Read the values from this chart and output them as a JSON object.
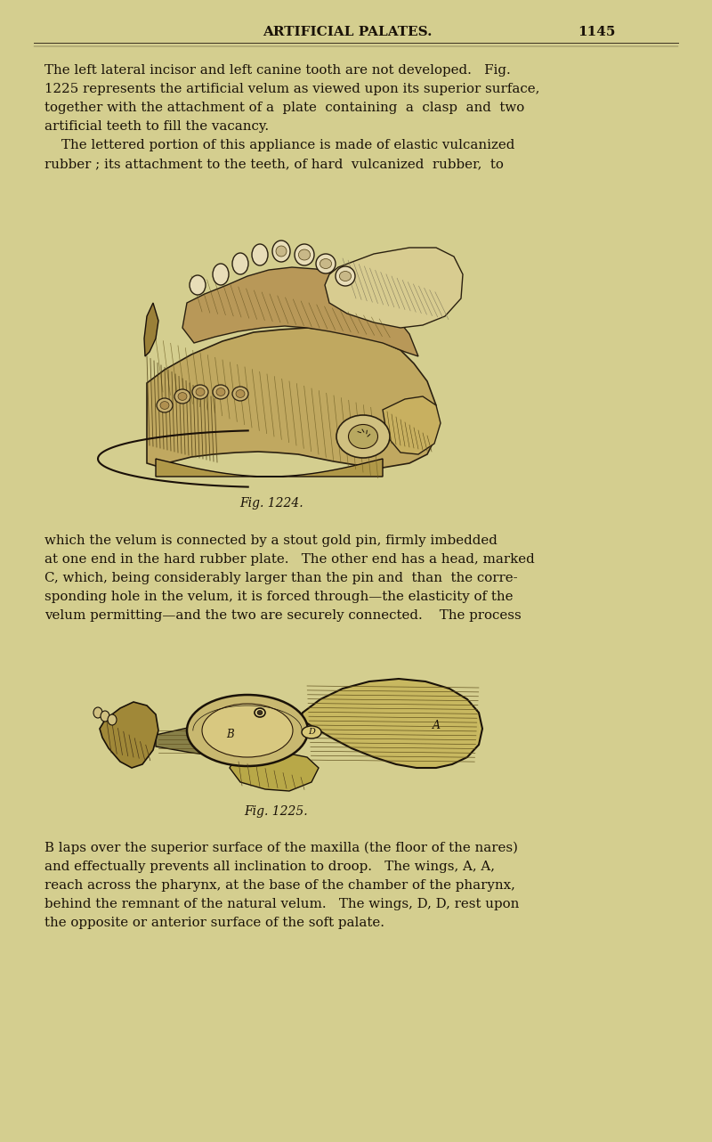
{
  "bg_color": "#d4ce8f",
  "text_color": "#1a1208",
  "title": "ARTIFICIAL PALATES.",
  "page_num": "1145",
  "fig1_caption": "Fig. 1224.",
  "fig2_caption": "Fig. 1225.",
  "para1_lines": [
    "The left lateral incisor and left canine tooth are not developed.   Fig.",
    "1225 represents the artificial velum as viewed upon its superior surface,",
    "together with the attachment of a  plate  containing  a  clasp  and  two",
    "artificial teeth to fill the vacancy.",
    "    The lettered portion of this appliance is made of elastic vulcanized",
    "rubber ; its attachment to the teeth, of hard  vulcanized  rubber,  to"
  ],
  "para2_lines": [
    "which the velum is connected by a stout gold pin, firmly imbedded",
    "at one end in the hard rubber plate.   The other end has a head, marked",
    "C, which, being considerably larger than the pin and  than  the corre-",
    "sponding hole in the velum, it is forced through—the elasticity of the",
    "velum permitting—and the two are securely connected.    The process"
  ],
  "para3_lines": [
    "B laps over the superior surface of the maxilla (the floor of the nares)",
    "and effectually prevents all inclination to droop.   The wings, A, A,",
    "reach across the pharynx, at the base of the chamber of the pharynx,",
    "behind the remnant of the natural velum.   The wings, D, D, rest upon",
    "the opposite or anterior surface of the soft palate."
  ]
}
